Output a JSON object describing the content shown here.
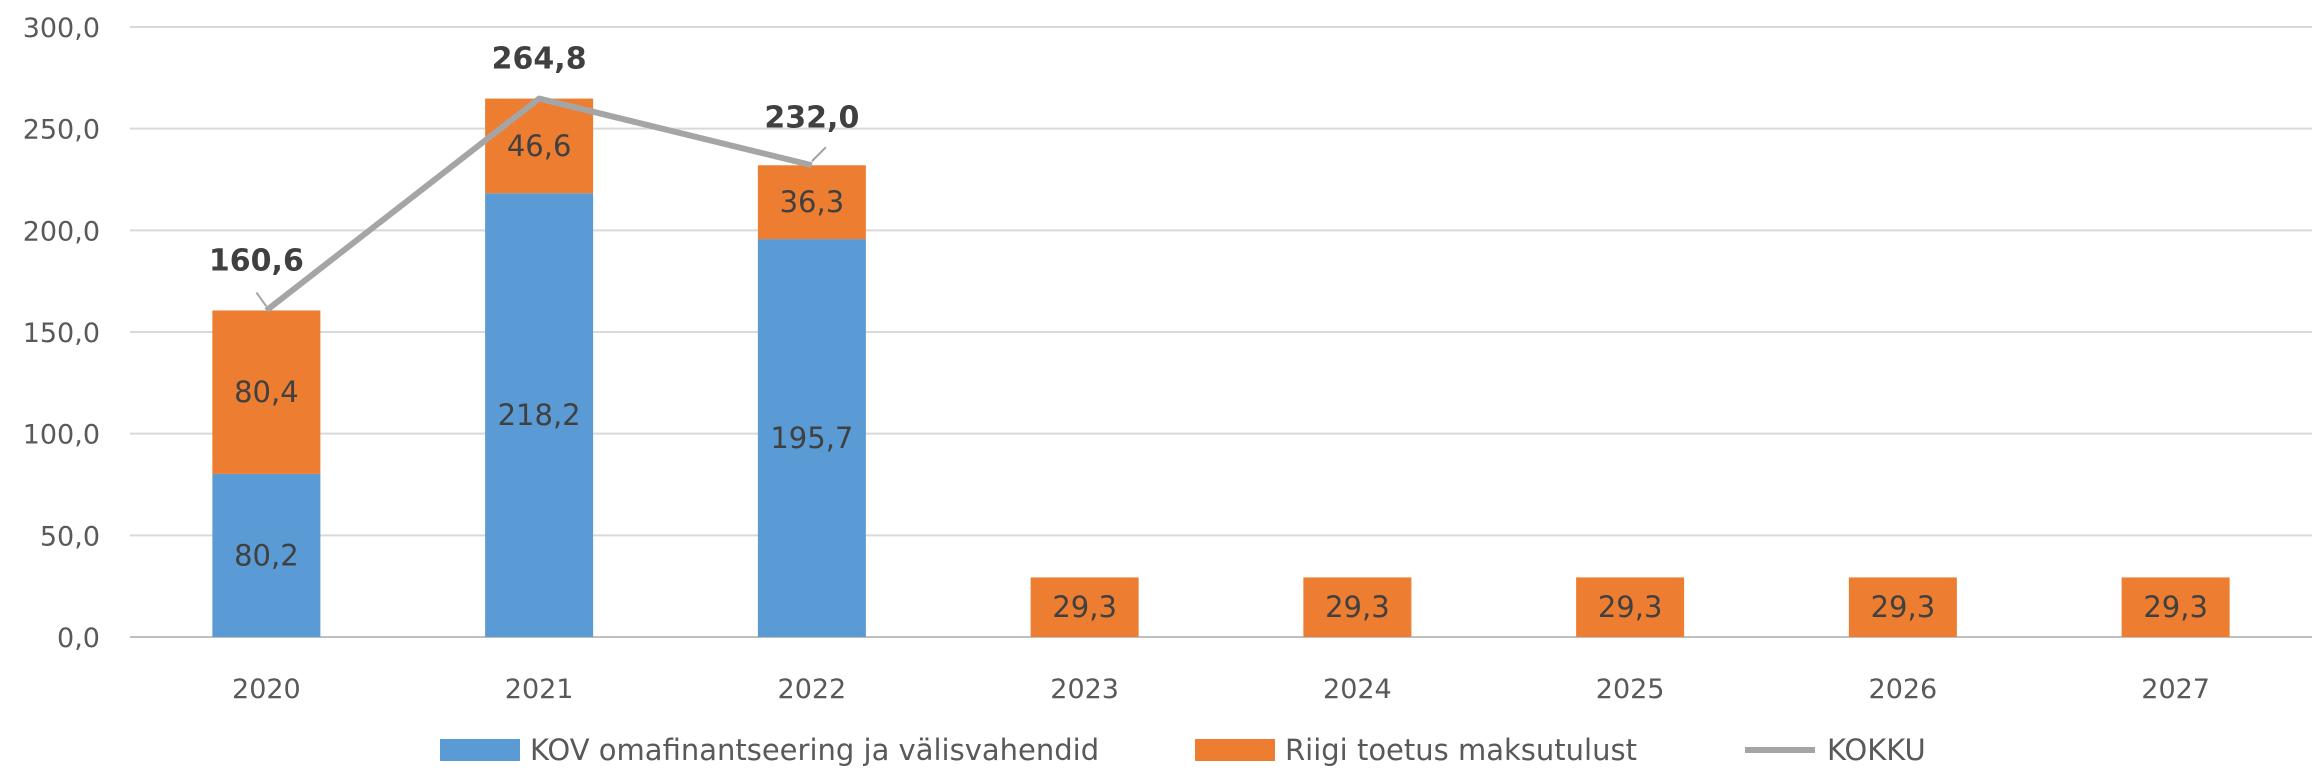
{
  "chart_data": {
    "type": "bar",
    "stacked": true,
    "categories": [
      "2020",
      "2021",
      "2022",
      "2023",
      "2024",
      "2025",
      "2026",
      "2027"
    ],
    "series": [
      {
        "name": "KOV omafinantseering ja välisvahendid",
        "color": "#5b9bd5",
        "values": [
          80.2,
          218.2,
          195.7,
          null,
          null,
          null,
          null,
          null
        ],
        "labels": [
          "80,2",
          "218,2",
          "195,7",
          "",
          "",
          "",
          "",
          ""
        ]
      },
      {
        "name": "Riigi toetus maksutulust",
        "color": "#ed7d31",
        "values": [
          80.4,
          46.6,
          36.3,
          29.3,
          29.3,
          29.3,
          29.3,
          29.3
        ],
        "labels": [
          "80,4",
          "46,6",
          "36,3",
          "29,3",
          "29,3",
          "29,3",
          "29,3",
          "29,3"
        ]
      }
    ],
    "total": {
      "name": "KOKKU",
      "type": "line",
      "color": "#a5a5a5",
      "values": [
        160.6,
        264.8,
        232.0
      ],
      "labels": [
        "160,6",
        "264,8",
        "232,0"
      ]
    },
    "yaxis": {
      "min": 0,
      "max": 300,
      "step": 50,
      "tick_labels": [
        "0,0",
        "50,0",
        "100,0",
        "150,0",
        "200,0",
        "250,0",
        "300,0"
      ]
    },
    "grid": true,
    "legend_position": "bottom"
  }
}
